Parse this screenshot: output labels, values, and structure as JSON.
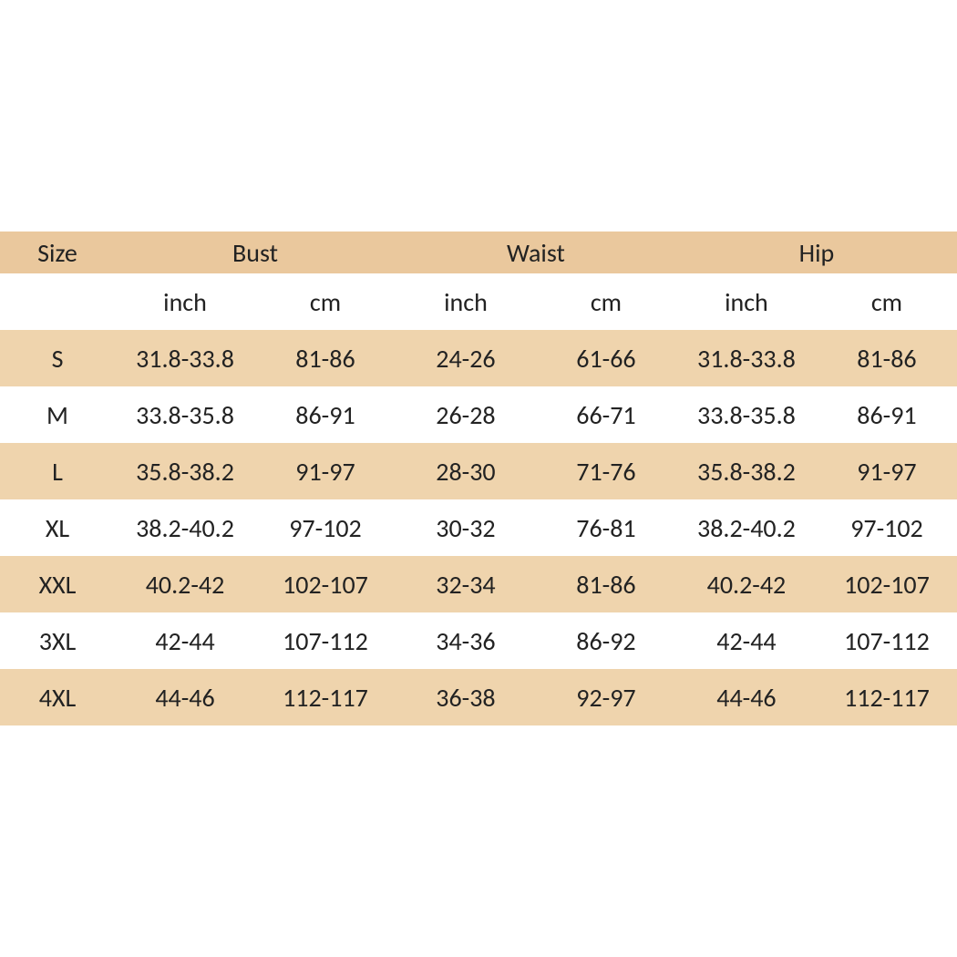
{
  "colors": {
    "header_bg": "#eac89d",
    "band_dark": "#efd4ad",
    "band_light": "#ffffff",
    "text": "#222222"
  },
  "font": {
    "family": "Calibri, Arial, sans-serif",
    "size_pt": 21
  },
  "table": {
    "type": "table",
    "header": {
      "size": "Size",
      "bust": "Bust",
      "waist": "Waist",
      "hip": "Hip"
    },
    "subheader": {
      "inch": "inch",
      "cm": "cm"
    },
    "columns": [
      "size",
      "bust_in",
      "bust_cm",
      "waist_in",
      "waist_cm",
      "hip_in",
      "hip_cm"
    ],
    "col_widths_pct": [
      12,
      14.666,
      14.666,
      14.666,
      14.666,
      14.666,
      14.666
    ],
    "rows": [
      {
        "size": "S",
        "bust_in": "31.8-33.8",
        "bust_cm": "81-86",
        "waist_in": "24-26",
        "waist_cm": "61-66",
        "hip_in": "31.8-33.8",
        "hip_cm": "81-86"
      },
      {
        "size": "M",
        "bust_in": "33.8-35.8",
        "bust_cm": "86-91",
        "waist_in": "26-28",
        "waist_cm": "66-71",
        "hip_in": "33.8-35.8",
        "hip_cm": "86-91"
      },
      {
        "size": "L",
        "bust_in": "35.8-38.2",
        "bust_cm": "91-97",
        "waist_in": "28-30",
        "waist_cm": "71-76",
        "hip_in": "35.8-38.2",
        "hip_cm": "91-97"
      },
      {
        "size": "XL",
        "bust_in": "38.2-40.2",
        "bust_cm": "97-102",
        "waist_in": "30-32",
        "waist_cm": "76-81",
        "hip_in": "38.2-40.2",
        "hip_cm": "97-102"
      },
      {
        "size": "XXL",
        "bust_in": "40.2-42",
        "bust_cm": "102-107",
        "waist_in": "32-34",
        "waist_cm": "81-86",
        "hip_in": "40.2-42",
        "hip_cm": "102-107"
      },
      {
        "size": "3XL",
        "bust_in": "42-44",
        "bust_cm": "107-112",
        "waist_in": "34-36",
        "waist_cm": "86-92",
        "hip_in": "42-44",
        "hip_cm": "107-112"
      },
      {
        "size": "4XL",
        "bust_in": "44-46",
        "bust_cm": "112-117",
        "waist_in": "36-38",
        "waist_cm": "92-97",
        "hip_in": "44-46",
        "hip_cm": "112-117"
      }
    ]
  }
}
